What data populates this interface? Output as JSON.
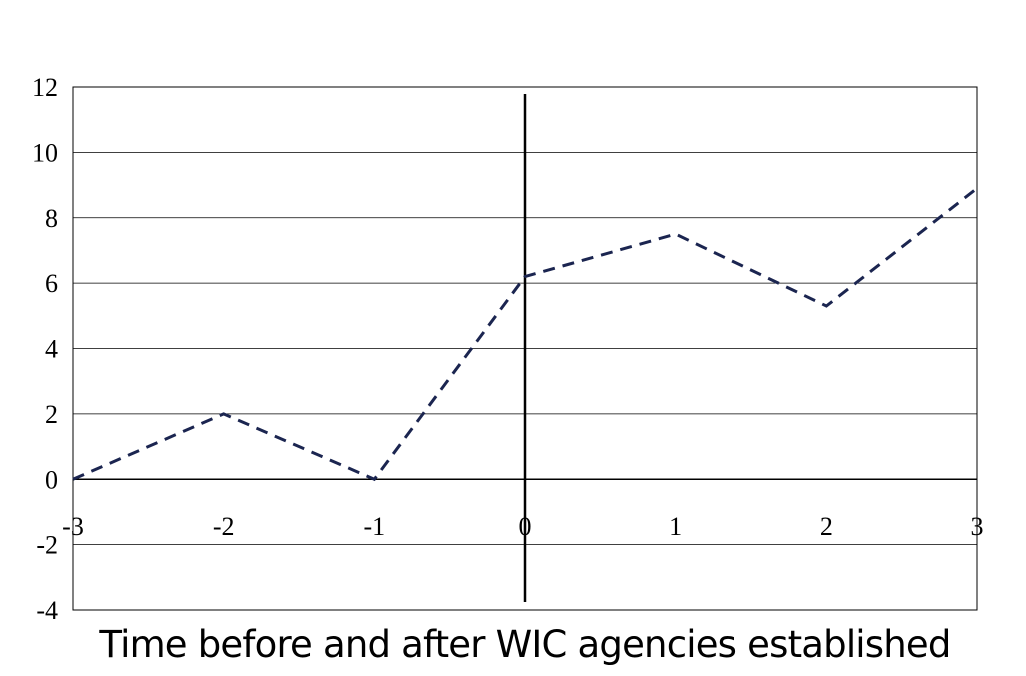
{
  "chart_data": {
    "type": "line",
    "title": "",
    "xlabel": "Time before and after WIC agencies established",
    "ylabel": "",
    "x": [
      -3,
      -2,
      -1,
      0,
      1,
      2,
      3
    ],
    "series": [
      {
        "values": [
          0,
          2,
          0,
          6.2,
          7.5,
          5.3,
          8.9
        ],
        "color": "#1b2550",
        "style": "dashed"
      }
    ],
    "xlim": [
      -3,
      3
    ],
    "ylim": [
      -4,
      12
    ],
    "xticks": [
      "-3",
      "-2",
      "-1",
      "0",
      "1",
      "2",
      "3"
    ],
    "yticks": [
      "-4",
      "-2",
      "0",
      "2",
      "4",
      "6",
      "8",
      "10",
      "12"
    ],
    "grid": "horizontal",
    "reference_line": {
      "x": 0
    },
    "legend": "none"
  }
}
